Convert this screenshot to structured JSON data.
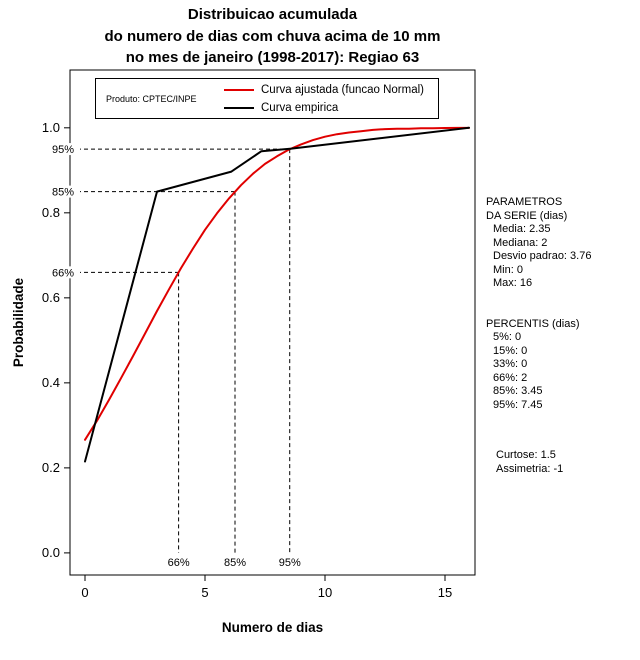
{
  "title": {
    "line1": "Distribuicao acumulada",
    "line2": "do numero de dias com chuva acima de 10 mm",
    "line3": "no mes de janeiro (1998-2017): Regiao 63"
  },
  "legend": {
    "product_label": "Produto: CPTEC/INPE",
    "entries": [
      {
        "label": "Curva ajustada (funcao Normal)",
        "color": "#e00000"
      },
      {
        "label": "Curva empirica",
        "color": "#000000"
      }
    ]
  },
  "side_panel": {
    "params_title1": "PARAMETROS",
    "params_title2": "DA SERIE (dias)",
    "params": [
      "Media: 2.35",
      "Mediana: 2",
      "Desvio padrao: 3.76",
      "Min: 0",
      "Max: 16"
    ],
    "percentis_title": "PERCENTIS (dias)",
    "percentis": [
      "5%: 0",
      "15%: 0",
      "33%: 0",
      "66%: 2",
      "85%: 3.45",
      "95%: 7.45"
    ],
    "moments": [
      "Curtose: 1.5",
      "Assimetria: -1"
    ]
  },
  "chart_data": {
    "type": "line",
    "title": "Distribuicao acumulada do numero de dias com chuva acima de 10 mm no mes de janeiro (1998-2017): Regiao 63",
    "xlabel": "Numero de dias",
    "ylabel": "Probabilidade",
    "xlim": [
      -0.625,
      16.25
    ],
    "ylim": [
      -0.052,
      1.136
    ],
    "grid": false,
    "legend_position": "top-inside",
    "xticks": {
      "values": [
        0,
        5,
        10,
        15
      ],
      "labels": [
        "0",
        "5",
        "10",
        "15"
      ]
    },
    "yticks": {
      "values": [
        0,
        0.2,
        0.4,
        0.6,
        0.8,
        1.0
      ],
      "labels": [
        "0.0",
        "0.2",
        "0.4",
        "0.6",
        "0.8",
        "1.0"
      ]
    },
    "guides": [
      {
        "prob": 0.66,
        "x": 3.9,
        "label": "66%"
      },
      {
        "prob": 0.85,
        "x": 6.25,
        "label": "85%"
      },
      {
        "prob": 0.95,
        "x": 8.53,
        "label": "95%"
      }
    ],
    "series": [
      {
        "name": "Curva ajustada (funcao Normal)",
        "color": "#e00000",
        "width": 2,
        "points": [
          [
            0,
            0.266
          ],
          [
            0.5,
            0.311
          ],
          [
            1,
            0.36
          ],
          [
            1.5,
            0.411
          ],
          [
            2,
            0.463
          ],
          [
            2.5,
            0.516
          ],
          [
            3,
            0.569
          ],
          [
            3.5,
            0.62
          ],
          [
            4,
            0.67
          ],
          [
            4.5,
            0.716
          ],
          [
            5,
            0.76
          ],
          [
            5.5,
            0.799
          ],
          [
            6,
            0.834
          ],
          [
            6.5,
            0.865
          ],
          [
            7,
            0.892
          ],
          [
            7.5,
            0.915
          ],
          [
            8,
            0.933
          ],
          [
            8.5,
            0.949
          ],
          [
            9,
            0.961
          ],
          [
            9.5,
            0.971
          ],
          [
            10,
            0.979
          ],
          [
            10.5,
            0.985
          ],
          [
            11,
            0.989
          ],
          [
            11.5,
            0.992
          ],
          [
            12,
            0.995
          ],
          [
            12.5,
            0.997
          ],
          [
            13,
            0.998
          ],
          [
            13.5,
            0.998
          ],
          [
            14,
            0.999
          ],
          [
            14.5,
            0.999
          ],
          [
            15,
            0.9996
          ],
          [
            15.5,
            0.9998
          ],
          [
            16,
            0.9999
          ]
        ]
      },
      {
        "name": "Curva empirica",
        "color": "#000000",
        "width": 2,
        "points": [
          [
            0,
            0.215
          ],
          [
            3,
            0.85
          ],
          [
            6.1,
            0.897
          ],
          [
            7.35,
            0.945
          ],
          [
            8.6,
            0.951
          ],
          [
            16,
            1.0
          ]
        ]
      }
    ]
  }
}
